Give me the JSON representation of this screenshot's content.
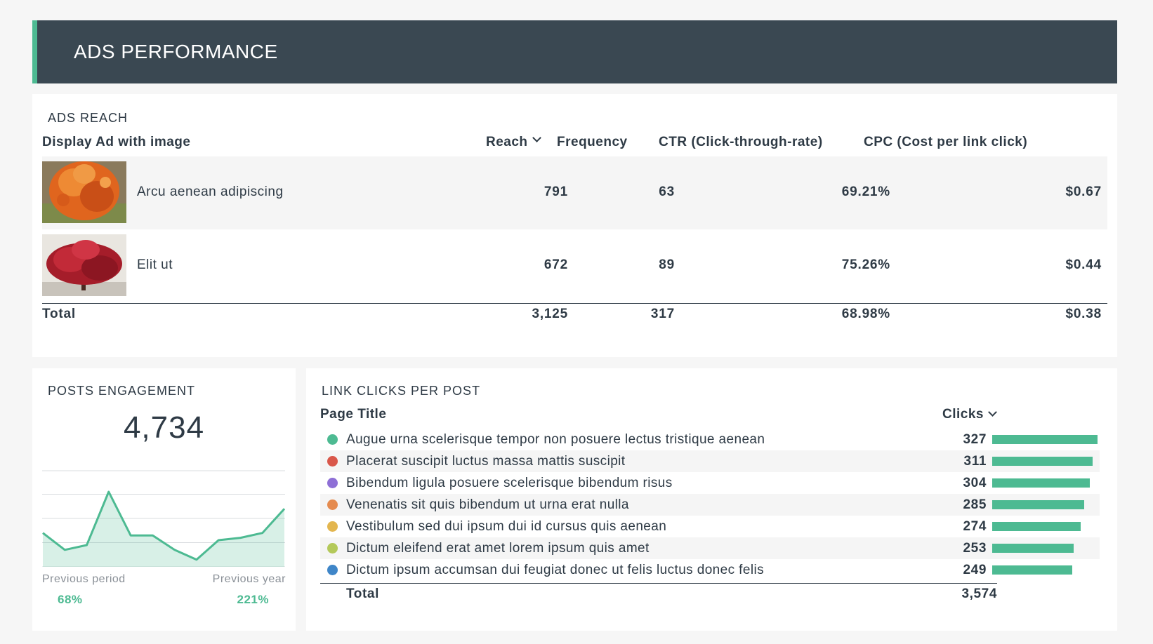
{
  "header": {
    "title": "ADS PERFORMANCE"
  },
  "ads_reach": {
    "title": "ADS REACH",
    "columns": [
      "Display Ad with image",
      "Reach",
      "Frequency",
      "CTR (Click-through-rate)",
      "CPC (Cost per link click)"
    ],
    "rows": [
      {
        "name": "Arcu aenean adipiscing",
        "reach": "791",
        "frequency": "63",
        "ctr": "69.21%",
        "cpc": "$0.67",
        "thumb_icon": "orange-tree-photo"
      },
      {
        "name": "Elit ut",
        "reach": "672",
        "frequency": "89",
        "ctr": "75.26%",
        "cpc": "$0.44",
        "thumb_icon": "red-tree-photo"
      }
    ],
    "total": {
      "label": "Total",
      "reach": "3,125",
      "frequency": "317",
      "ctr": "68.98%",
      "cpc": "$0.38"
    }
  },
  "posts_engagement": {
    "title": "POSTS ENGAGEMENT",
    "value": "4,734",
    "previous_period_label": "Previous period",
    "previous_period_value": "68%",
    "previous_year_label": "Previous year",
    "previous_year_value": "221%",
    "accent": "#4dba92"
  },
  "link_clicks": {
    "title": "LINK CLICKS PER POST",
    "col_title": "Page Title",
    "col_clicks": "Clicks",
    "rows": [
      {
        "label": "Augue urna scelerisque tempor non posuere lectus tristique aenean",
        "value": 327,
        "color": "#4dba92"
      },
      {
        "label": "Placerat suscipit luctus massa mattis suscipit",
        "value": 311,
        "color": "#d9574a"
      },
      {
        "label": "Bibendum ligula posuere scelerisque bibendum risus",
        "value": 304,
        "color": "#8e6fd6"
      },
      {
        "label": "Venenatis sit quis bibendum ut urna erat nulla",
        "value": 285,
        "color": "#e58b4f"
      },
      {
        "label": "Vestibulum sed dui ipsum dui id cursus quis aenean",
        "value": 274,
        "color": "#e3b64f"
      },
      {
        "label": "Dictum eleifend erat amet lorem ipsum quis amet",
        "value": 253,
        "color": "#b4c95a"
      },
      {
        "label": "Dictum ipsum accumsan dui feugiat donec ut felis luctus donec felis",
        "value": 249,
        "color": "#3f86c8"
      }
    ],
    "total_label": "Total",
    "total_value": "3,574",
    "bar_color": "#4dba92"
  },
  "chart_data": {
    "type": "area",
    "values": [
      14,
      7,
      9,
      31,
      13,
      13,
      7,
      3,
      11,
      12,
      14,
      24
    ],
    "ylim": [
      0,
      40
    ],
    "grid": true
  }
}
